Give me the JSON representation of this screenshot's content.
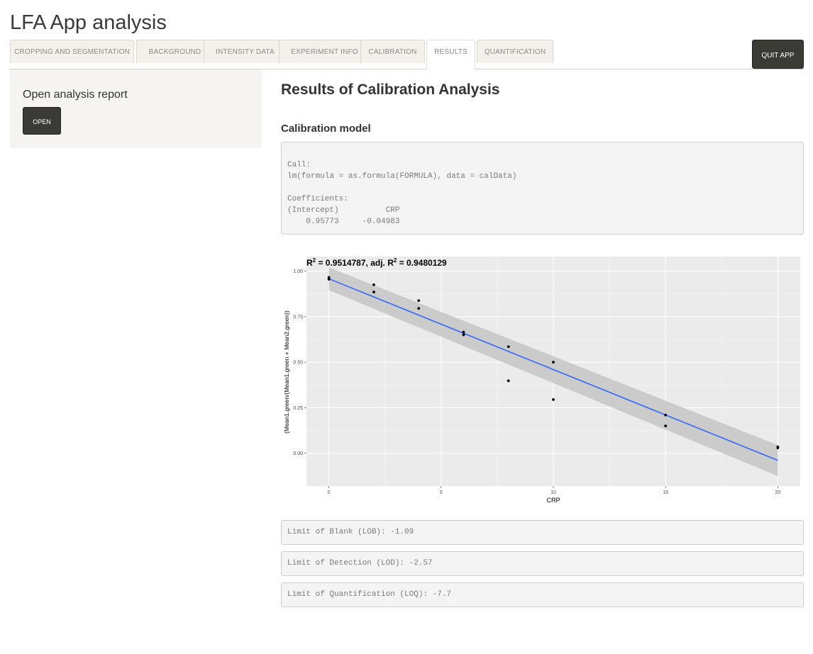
{
  "app": {
    "title": "LFA App analysis"
  },
  "tabs": [
    {
      "label": "CROPPING AND SEGMENTATION"
    },
    {
      "label": "BACKGROUND"
    },
    {
      "label": "INTENSITY DATA"
    },
    {
      "label": "EXPERIMENT INFO"
    },
    {
      "label": "CALIBRATION"
    },
    {
      "label": "RESULTS",
      "active": true
    },
    {
      "label": "QUANTIFICATION"
    }
  ],
  "quit_label": "QUIT APP",
  "sidebar": {
    "heading": "Open analysis report",
    "open_label": "OPEN"
  },
  "main": {
    "title": "Results of Calibration Analysis",
    "model_heading": "Calibration model",
    "model_output": "Call:\nlm(formula = as.formula(FORMULA), data = calData)\n\nCoefficients:\n(Intercept)          CRP  \n    0.95773     -0.04983  ",
    "lob": "Limit of Blank (LOB): -1.09",
    "lod": "Limit of Detection (LOD): -2.57",
    "loq": "Limit of Quantification (LOQ): -7.7"
  },
  "chart_data": {
    "type": "scatter",
    "title_parts": {
      "r2_label": "R",
      "sup": "2",
      "r2_value": " = 0.9514787, adj. R",
      "adj_value": " = 0.9480129"
    },
    "xlabel": "CRP",
    "ylabel": "(Mean1.green/(Mean1.green + Mean2.green))",
    "xlim": [
      -1,
      21
    ],
    "ylim": [
      -0.18,
      1.08
    ],
    "xticks": [
      0,
      5,
      10,
      15,
      20
    ],
    "xtick_labels": [
      "0",
      "5",
      "10",
      "15",
      "20"
    ],
    "yticks": [
      0,
      0.25,
      0.5,
      0.75,
      1.0
    ],
    "ytick_labels": [
      "0.00",
      "0.25",
      "0.50",
      "0.75",
      "1.00"
    ],
    "points": [
      {
        "x": 0,
        "y": 0.965
      },
      {
        "x": 0,
        "y": 0.955
      },
      {
        "x": 2,
        "y": 0.925
      },
      {
        "x": 2,
        "y": 0.885
      },
      {
        "x": 4,
        "y": 0.838
      },
      {
        "x": 4,
        "y": 0.795
      },
      {
        "x": 6,
        "y": 0.665
      },
      {
        "x": 6,
        "y": 0.65
      },
      {
        "x": 8,
        "y": 0.585
      },
      {
        "x": 8,
        "y": 0.398
      },
      {
        "x": 10,
        "y": 0.5
      },
      {
        "x": 10,
        "y": 0.295
      },
      {
        "x": 15,
        "y": 0.21
      },
      {
        "x": 15,
        "y": 0.15
      },
      {
        "x": 20,
        "y": 0.035
      },
      {
        "x": 20,
        "y": 0.03
      }
    ],
    "fit": {
      "intercept": 0.95773,
      "slope": -0.04983
    },
    "band": {
      "lower": [
        0.895,
        -0.125
      ],
      "upper": [
        1.02,
        0.045
      ]
    },
    "colors": {
      "line": "#3366ff",
      "band": "#c8c8c8",
      "panel": "#ebebeb",
      "points": "#000000"
    },
    "grid": true
  }
}
